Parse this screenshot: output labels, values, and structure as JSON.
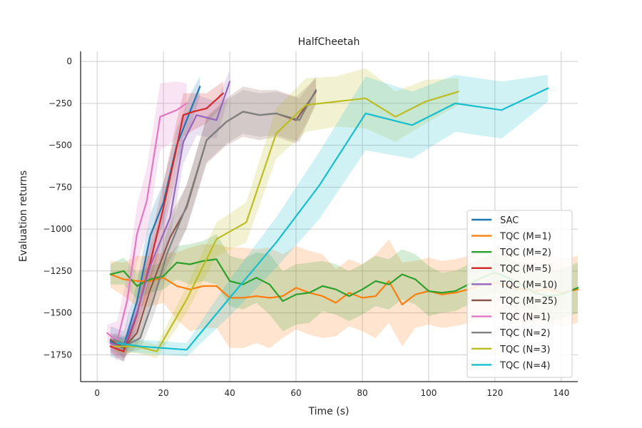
{
  "chart_data": {
    "type": "line",
    "title": "HalfCheetah",
    "xlabel": "Time (s)",
    "ylabel": "Evaluation returns",
    "xlim": [
      -5,
      145
    ],
    "ylim": [
      -1910,
      60
    ],
    "xticks": [
      0,
      20,
      40,
      60,
      80,
      100,
      120,
      140
    ],
    "yticks": [
      0,
      -250,
      -500,
      -750,
      -1000,
      -1250,
      -1500,
      -1750
    ],
    "xtick_labels": [
      "0",
      "20",
      "40",
      "60",
      "80",
      "100",
      "120",
      "140"
    ],
    "ytick_labels": [
      "0",
      "−250",
      "−500",
      "−750",
      "−1000",
      "−1250",
      "−1500",
      "−1750"
    ],
    "grid": true,
    "legend_position": "lower-right",
    "series": [
      {
        "name": "SAC",
        "color": "#1f77b4",
        "x": [
          4,
          8,
          12,
          16,
          20,
          24,
          28,
          31
        ],
        "y": [
          -1670,
          -1700,
          -1430,
          -1040,
          -840,
          -500,
          -300,
          -150
        ],
        "band": [
          90,
          90,
          110,
          130,
          120,
          100,
          100,
          60
        ]
      },
      {
        "name": "TQC (M=1)",
        "color": "#ff7f0e",
        "x": [
          4,
          8,
          12,
          16,
          20,
          24,
          28,
          32,
          36,
          40,
          44,
          48,
          52,
          56,
          60,
          64,
          68,
          72,
          76,
          80,
          84,
          88,
          92,
          96,
          100,
          104,
          108,
          112,
          116,
          120,
          124,
          128,
          132,
          136,
          140,
          145
        ],
        "y": [
          -1270,
          -1300,
          -1310,
          -1310,
          -1290,
          -1340,
          -1360,
          -1340,
          -1340,
          -1410,
          -1410,
          -1400,
          -1410,
          -1400,
          -1350,
          -1380,
          -1400,
          -1440,
          -1380,
          -1410,
          -1400,
          -1310,
          -1450,
          -1390,
          -1370,
          -1390,
          -1380,
          -1360,
          -1330,
          -1320,
          -1340,
          -1360,
          -1370,
          -1360,
          -1380,
          -1360
        ],
        "band": [
          80,
          100,
          150,
          150,
          150,
          200,
          250,
          250,
          250,
          300,
          300,
          280,
          300,
          250,
          250,
          250,
          250,
          200,
          200,
          200,
          250,
          250,
          250,
          200,
          200,
          200,
          200,
          200,
          200,
          200,
          200,
          200,
          200,
          200,
          200,
          200
        ]
      },
      {
        "name": "TQC (M=2)",
        "color": "#2ca02c",
        "x": [
          4,
          8,
          12,
          16,
          20,
          24,
          28,
          32,
          36,
          40,
          44,
          48,
          52,
          56,
          60,
          64,
          68,
          72,
          76,
          80,
          84,
          88,
          92,
          96,
          100,
          104,
          108,
          112,
          116,
          120,
          124,
          128,
          132,
          136,
          140,
          145
        ],
        "y": [
          -1270,
          -1250,
          -1340,
          -1300,
          -1280,
          -1200,
          -1210,
          -1190,
          -1180,
          -1310,
          -1330,
          -1290,
          -1330,
          -1430,
          -1390,
          -1380,
          -1340,
          -1360,
          -1400,
          -1360,
          -1310,
          -1330,
          -1270,
          -1300,
          -1370,
          -1380,
          -1370,
          -1330,
          -1290,
          -1260,
          -1290,
          -1330,
          -1380,
          -1400,
          -1390,
          -1350
        ],
        "band": [
          60,
          80,
          80,
          80,
          80,
          100,
          120,
          120,
          150,
          150,
          150,
          150,
          180,
          180,
          180,
          180,
          150,
          150,
          150,
          150,
          150,
          150,
          150,
          150,
          150,
          120,
          120,
          120,
          120,
          120,
          120,
          120,
          120,
          150,
          150,
          150
        ]
      },
      {
        "name": "TQC (M=5)",
        "color": "#d62728",
        "x": [
          4,
          8,
          12,
          16,
          20,
          24,
          26,
          29,
          33,
          38
        ],
        "y": [
          -1700,
          -1730,
          -1510,
          -1200,
          -870,
          -510,
          -320,
          -300,
          -280,
          -190
        ],
        "band": [
          40,
          60,
          90,
          130,
          150,
          160,
          130,
          110,
          90,
          70
        ]
      },
      {
        "name": "TQC (M=10)",
        "color": "#9467bd",
        "x": [
          4,
          8,
          12,
          16,
          22,
          26,
          30,
          36,
          40
        ],
        "y": [
          -1680,
          -1710,
          -1500,
          -1220,
          -930,
          -480,
          -320,
          -350,
          -120
        ],
        "band": [
          50,
          60,
          80,
          110,
          130,
          130,
          120,
          110,
          70
        ]
      },
      {
        "name": "TQC (M=25)",
        "color": "#8c564b",
        "x": [
          4,
          8,
          12,
          16,
          22,
          27,
          33,
          39,
          44,
          49,
          54,
          60,
          66
        ],
        "y": [
          -1660,
          -1710,
          -1620,
          -1360,
          -1050,
          -870,
          -470,
          -360,
          -300,
          -320,
          -310,
          -350,
          -180
        ],
        "band": [
          40,
          60,
          80,
          100,
          130,
          130,
          140,
          140,
          150,
          150,
          140,
          140,
          80
        ]
      },
      {
        "name": "TQC (N=1)",
        "color": "#e377c2",
        "x": [
          3,
          6,
          9,
          12,
          15,
          19,
          24,
          27
        ],
        "y": [
          -1620,
          -1670,
          -1430,
          -1030,
          -830,
          -330,
          -290,
          -250
        ],
        "band": [
          50,
          120,
          150,
          170,
          200,
          200,
          170,
          120
        ]
      },
      {
        "name": "TQC (N=2)",
        "color": "#7f7f7f",
        "x": [
          5,
          9,
          13,
          17,
          21,
          27,
          33,
          39,
          44,
          49,
          54,
          61,
          66
        ],
        "y": [
          -1660,
          -1690,
          -1650,
          -1420,
          -1150,
          -860,
          -470,
          -360,
          -300,
          -320,
          -310,
          -350,
          -170
        ],
        "band": [
          40,
          50,
          70,
          100,
          130,
          130,
          130,
          130,
          130,
          130,
          130,
          130,
          80
        ]
      },
      {
        "name": "TQC (N=3)",
        "color": "#bcbd22",
        "x": [
          5,
          12,
          18,
          27,
          36,
          45,
          54,
          63,
          72,
          81,
          90,
          99,
          109
        ],
        "y": [
          -1700,
          -1700,
          -1730,
          -1420,
          -1060,
          -960,
          -430,
          -260,
          -240,
          -220,
          -330,
          -240,
          -180
        ],
        "band": [
          40,
          40,
          40,
          80,
          100,
          120,
          150,
          160,
          150,
          180,
          150,
          130,
          80
        ]
      },
      {
        "name": "TQC (N=4)",
        "color": "#17becf",
        "x": [
          6,
          13,
          27,
          40,
          54,
          67,
          81,
          95,
          108,
          122,
          136
        ],
        "y": [
          -1680,
          -1700,
          -1720,
          -1410,
          -1080,
          -740,
          -310,
          -380,
          -250,
          -290,
          -160
        ],
        "band": [
          40,
          40,
          40,
          110,
          150,
          200,
          220,
          200,
          170,
          170,
          80
        ]
      }
    ]
  }
}
